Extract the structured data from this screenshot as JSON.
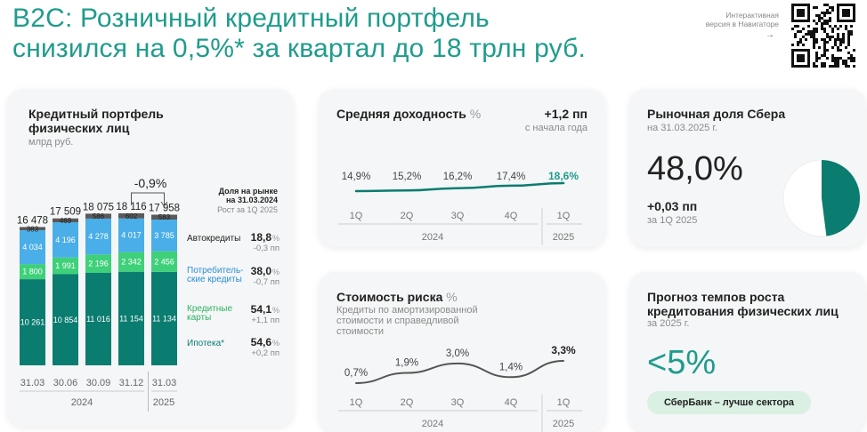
{
  "header": {
    "title_line1": "B2C: Розничный кредитный портфель",
    "title_line2": "снизился на 0,5%* за квартал до 18 трлн руб.",
    "nav_line1": "Интерактивная",
    "nav_line2": "версия в Навигаторе",
    "nav_arrow": "→"
  },
  "colors": {
    "teal_dark": "#0a7c70",
    "green": "#3fd07a",
    "blue": "#4aaee8",
    "gray": "#5a5a5a",
    "accent_text": "#1f9c8c"
  },
  "portfolio": {
    "title_line1": "Кредитный портфель",
    "title_line2": "физических лиц",
    "unit": "млрд руб.",
    "change_label": "-0,9%",
    "share_header_line1": "Доля на рынке",
    "share_header_line2": "на 31.03.2024",
    "share_header_line3": "Рост за 1Q 2025",
    "legend": [
      {
        "label_line1": "Автокредиты",
        "label_line2": "",
        "share": "18,8",
        "change": "-0,3 пп",
        "color": "#5a5a5a"
      },
      {
        "label_line1": "Потребитель-",
        "label_line2": "ские кредиты",
        "share": "38,0",
        "change": "-0,7 пп",
        "color": "#4aaee8"
      },
      {
        "label_line1": "Кредитные",
        "label_line2": "карты",
        "share": "54,1",
        "change": "+1,1 пп",
        "color": "#3fd07a"
      },
      {
        "label_line1": "Ипотека*",
        "label_line2": "",
        "share": "54,6",
        "change": "+0,2 пп",
        "color": "#0a7c70"
      }
    ],
    "year_2024": "2024",
    "year_2025": "2025"
  },
  "yield": {
    "title": "Средняя доходность",
    "unit": "%",
    "delta": "+1,2 пп",
    "delta_sub": "с начала года"
  },
  "market_share": {
    "title": "Рыночная доля Сбера",
    "sub": "на 31.03.2025 г.",
    "value": "48,0%",
    "delta": "+0,03 пп",
    "delta_sub": "за 1Q 2025"
  },
  "risk": {
    "title": "Стоимость риска",
    "unit": "%",
    "desc_line1": "Кредиты по амортизированной",
    "desc_line2": "стоимости и справедливой",
    "desc_line3": "стоимости"
  },
  "forecast": {
    "title_line1": "Прогноз темпов роста",
    "title_line2": "кредитования физических лиц",
    "sub": "за 2025 г.",
    "value": "<5%",
    "pill": "СберБанк – лучше сектора"
  },
  "chart_data": [
    {
      "type": "bar",
      "stacked": true,
      "title": "Кредитный портфель физических лиц",
      "subtitle": "млрд руб.",
      "categories": [
        "31.03",
        "30.06",
        "30.09",
        "31.12",
        "31.03"
      ],
      "years": [
        "2024",
        "2024",
        "2024",
        "2024",
        "2025"
      ],
      "totals": [
        "16 478",
        "17 509",
        "18 075",
        "18 116",
        "17 958"
      ],
      "series": [
        {
          "name": "Ипотека*",
          "values": [
            10261,
            10854,
            11016,
            11154,
            11134
          ],
          "labels": [
            "10 261",
            "10 854",
            "11 016",
            "11 154",
            "11 134"
          ]
        },
        {
          "name": "Кредитные карты",
          "values": [
            1800,
            1991,
            2196,
            2342,
            2456
          ],
          "labels": [
            "1 800",
            "1 991",
            "2 196",
            "2 342",
            "2 456"
          ]
        },
        {
          "name": "Потребительские кредиты",
          "values": [
            4034,
            4196,
            4278,
            4017,
            3785
          ],
          "labels": [
            "4 034",
            "4 196",
            "4 278",
            "4 017",
            "3 785"
          ]
        },
        {
          "name": "Автокредиты",
          "values": [
            383,
            469,
            586,
            602,
            583
          ],
          "labels": [
            "383",
            "469",
            "586",
            "602",
            "583"
          ]
        }
      ]
    },
    {
      "type": "line",
      "title": "Средняя доходность",
      "categories": [
        "1Q",
        "2Q",
        "3Q",
        "4Q",
        "1Q"
      ],
      "years": [
        "2024",
        "2024",
        "2024",
        "2024",
        "2025"
      ],
      "values": [
        14.9,
        15.2,
        16.2,
        17.4,
        18.6
      ],
      "labels": [
        "14,9%",
        "15,2%",
        "16,2%",
        "17,4%",
        "18,6%"
      ]
    },
    {
      "type": "pie",
      "title": "Рыночная доля Сбера",
      "values": [
        48.0,
        52.0
      ],
      "labels": [
        "48,0%",
        ""
      ]
    },
    {
      "type": "line",
      "title": "Стоимость риска",
      "categories": [
        "1Q",
        "2Q",
        "3Q",
        "4Q",
        "1Q"
      ],
      "years": [
        "2024",
        "2024",
        "2024",
        "2024",
        "2025"
      ],
      "values": [
        0.7,
        1.9,
        3.0,
        1.4,
        3.3
      ],
      "labels": [
        "0,7%",
        "1,9%",
        "3,0%",
        "1,4%",
        "3,3%"
      ]
    }
  ]
}
